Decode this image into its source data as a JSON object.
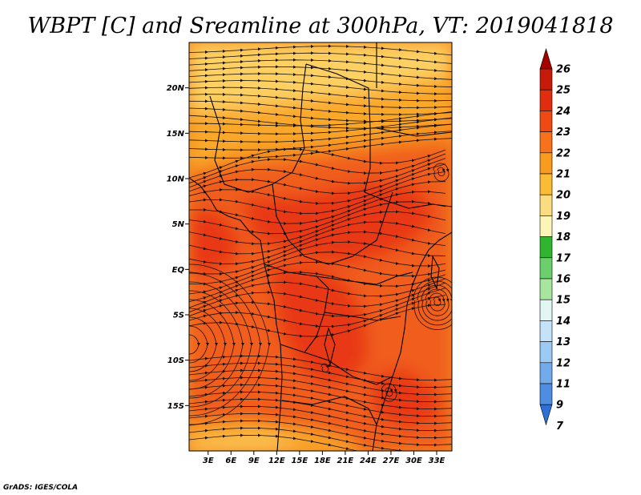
{
  "title": "WBPT [C] and Sreamline at 300hPa, VT: 2019041818",
  "credit": "GrADS: IGES/COLA",
  "chart_data": {
    "type": "heatmap",
    "variable": "Wet-bulb potential temperature (WBPT)",
    "units": "C",
    "level": "300hPa",
    "valid_time": "2019041818",
    "overlay": "streamlines",
    "lon_ticks": [
      "3E",
      "6E",
      "9E",
      "12E",
      "15E",
      "18E",
      "21E",
      "24E",
      "27E",
      "30E",
      "33E"
    ],
    "lat_ticks": [
      "20N",
      "15N",
      "10N",
      "5N",
      "EQ",
      "5S",
      "10S",
      "15S"
    ],
    "lon_values": [
      3,
      6,
      9,
      12,
      15,
      18,
      21,
      24,
      27,
      30,
      33
    ],
    "lat_values": [
      20,
      15,
      10,
      5,
      0,
      -5,
      -10,
      -15
    ],
    "lon_range": [
      0.5,
      35
    ],
    "lat_range": [
      -20,
      25
    ],
    "colorbar": {
      "labels": [
        "26",
        "25",
        "24",
        "23",
        "22",
        "21",
        "20",
        "19",
        "18",
        "17",
        "16",
        "15",
        "14",
        "13",
        "12",
        "11",
        "9",
        "7"
      ],
      "colors": [
        "#a50000",
        "#c81a0a",
        "#e02d10",
        "#f04a14",
        "#f7721a",
        "#f99b1f",
        "#fbbc35",
        "#fcdc80",
        "#fdf5b8",
        "#30b530",
        "#6bd06b",
        "#a8e6a0",
        "#e2f6f4",
        "#c4e2f8",
        "#9ccaf2",
        "#72abeb",
        "#4f8de0",
        "#2d6fd4"
      ]
    },
    "field_colors": {
      "warmest": "#e83818",
      "warm": "#f05d1c",
      "mid": "#f58a1d",
      "cool": "#f9a82c",
      "coolest": "#fcd062"
    }
  }
}
